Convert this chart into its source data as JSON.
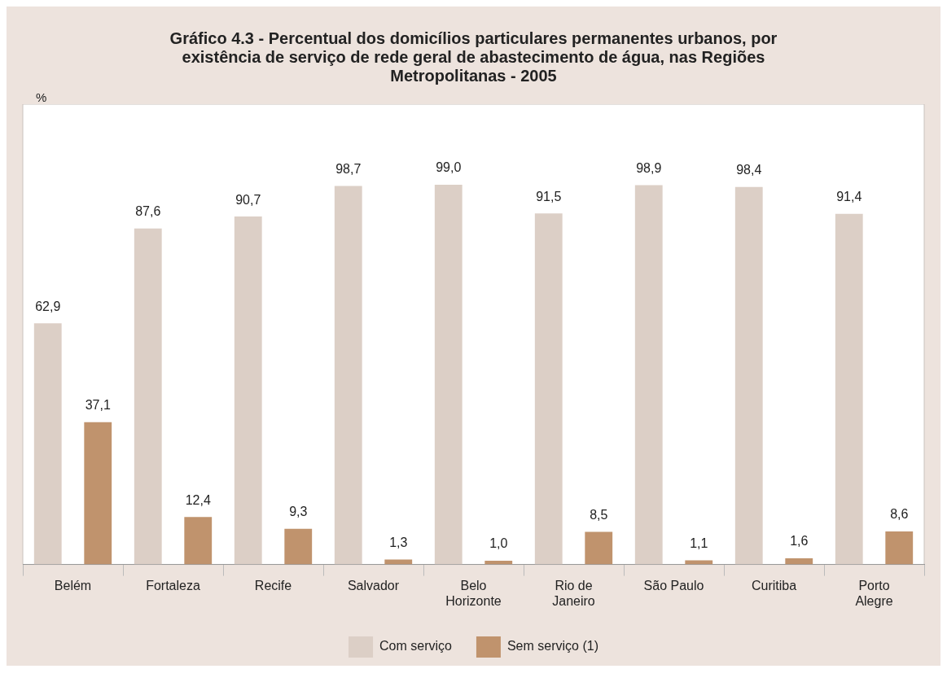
{
  "chart_data": {
    "type": "bar",
    "title": "Gráfico 4.3 - Percentual dos domicílios particulares permanentes urbanos, por existência de serviço de rede geral de abastecimento de água, nas Regiões Metropolitanas - 2005",
    "annotations": [
      "%"
    ],
    "categories": [
      "Belém",
      "Fortaleza",
      "Recife",
      "Salvador",
      "Belo Horizonte",
      "Rio de Janeiro",
      "São Paulo",
      "Curitiba",
      "Porto Alegre"
    ],
    "series": [
      {
        "name": "Com serviço",
        "color": "#dccfc6",
        "values": [
          62.9,
          87.6,
          90.7,
          98.7,
          99.0,
          91.5,
          98.9,
          98.4,
          91.4
        ],
        "value_labels": [
          "62,9",
          "87,6",
          "90,7",
          "98,7",
          "99,0",
          "91,5",
          "98,9",
          "98,4",
          "91,4"
        ]
      },
      {
        "name": "Sem serviço (1)",
        "color": "#c0936d",
        "values": [
          37.1,
          12.4,
          9.3,
          1.3,
          1.0,
          8.5,
          1.1,
          1.6,
          8.6
        ],
        "value_labels": [
          "37,1",
          "12,4",
          "9,3",
          "1,3",
          "1,0",
          "8,5",
          "1,1",
          "1,6",
          "8,6"
        ]
      }
    ],
    "legend": "bottom"
  }
}
